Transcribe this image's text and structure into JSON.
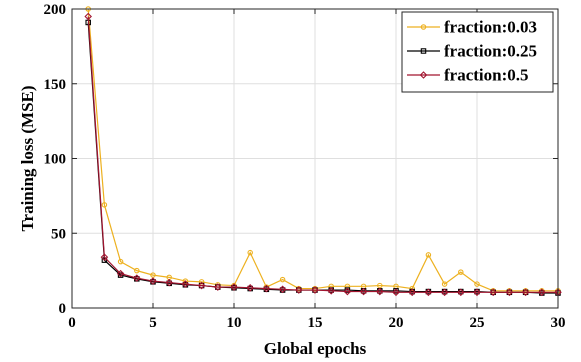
{
  "chart_data": {
    "type": "line",
    "xlabel": "Global epochs",
    "ylabel": "Training loss (MSE)",
    "xlim": [
      0,
      30
    ],
    "ylim": [
      0,
      200
    ],
    "xticks": [
      0,
      5,
      10,
      15,
      20,
      25,
      30
    ],
    "yticks": [
      0,
      50,
      100,
      150,
      200
    ],
    "grid": true,
    "legend_position": "top-right",
    "x": [
      1,
      2,
      3,
      4,
      5,
      6,
      7,
      8,
      9,
      10,
      11,
      12,
      13,
      14,
      15,
      16,
      17,
      18,
      19,
      20,
      21,
      22,
      23,
      24,
      25,
      26,
      27,
      28,
      29,
      30
    ],
    "series": [
      {
        "name": "fraction:0.03",
        "color": "#EDB120",
        "marker": "circle",
        "values": [
          200,
          69,
          31,
          25,
          22,
          20.5,
          18,
          17.5,
          15.5,
          15,
          37,
          14,
          19,
          13,
          13,
          14.5,
          14.5,
          14.5,
          15,
          14.5,
          13,
          35.5,
          16,
          24,
          16,
          11.5,
          11.5,
          11.5,
          11.5,
          11.5
        ]
      },
      {
        "name": "fraction:0.25",
        "color": "#000000",
        "marker": "square",
        "values": [
          191,
          32,
          22,
          19.5,
          17.5,
          16.5,
          15.5,
          15,
          14,
          13.5,
          13,
          12.5,
          12,
          12,
          12,
          12,
          12,
          11.5,
          11.5,
          11.5,
          11,
          11,
          11,
          11,
          11,
          10.5,
          10.5,
          10.5,
          10,
          10
        ]
      },
      {
        "name": "fraction:0.5",
        "color": "#A2142F",
        "marker": "diamond",
        "values": [
          195,
          34,
          23,
          20,
          18,
          17,
          16,
          15,
          14,
          14,
          13.5,
          13,
          12.5,
          12,
          12,
          11.5,
          11,
          11,
          11,
          10.5,
          10.5,
          10.5,
          10.5,
          10.5,
          10.5,
          10.5,
          10.5,
          10.5,
          10.5,
          10.5
        ]
      }
    ]
  }
}
